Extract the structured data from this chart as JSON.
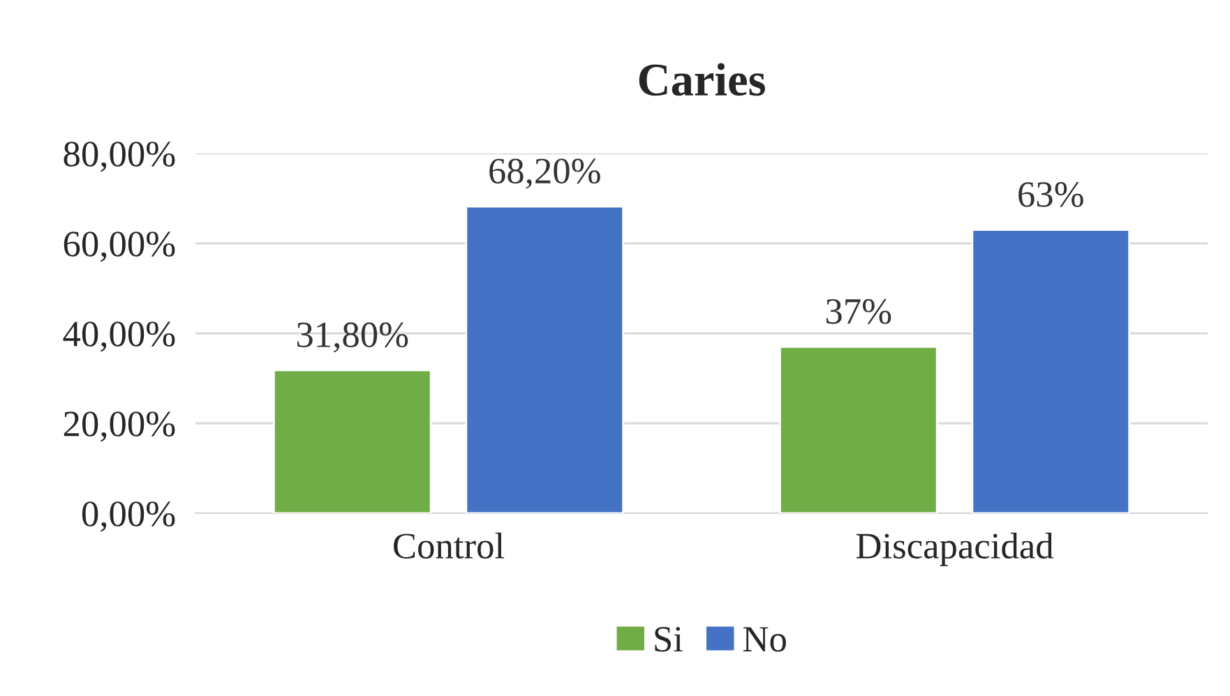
{
  "chart_data": {
    "type": "bar",
    "title": "Caries",
    "categories": [
      "Control",
      "Discapacidad"
    ],
    "series": [
      {
        "name": "Si",
        "color": "#70ad47",
        "values": [
          31.8,
          37
        ],
        "value_labels": [
          "31,80%",
          "37%"
        ]
      },
      {
        "name": "No",
        "color": "#4472c4",
        "values": [
          68.2,
          63
        ],
        "value_labels": [
          "68,20%",
          "63%"
        ]
      }
    ],
    "ylim": [
      0,
      80
    ],
    "yticks": [
      {
        "value": 0,
        "label": "0,00%"
      },
      {
        "value": 20,
        "label": "20,00%"
      },
      {
        "value": 40,
        "label": "40,00%"
      },
      {
        "value": 60,
        "label": "60,00%"
      },
      {
        "value": 80,
        "label": "80,00%"
      }
    ],
    "grid": "y",
    "legend": "bottom"
  }
}
